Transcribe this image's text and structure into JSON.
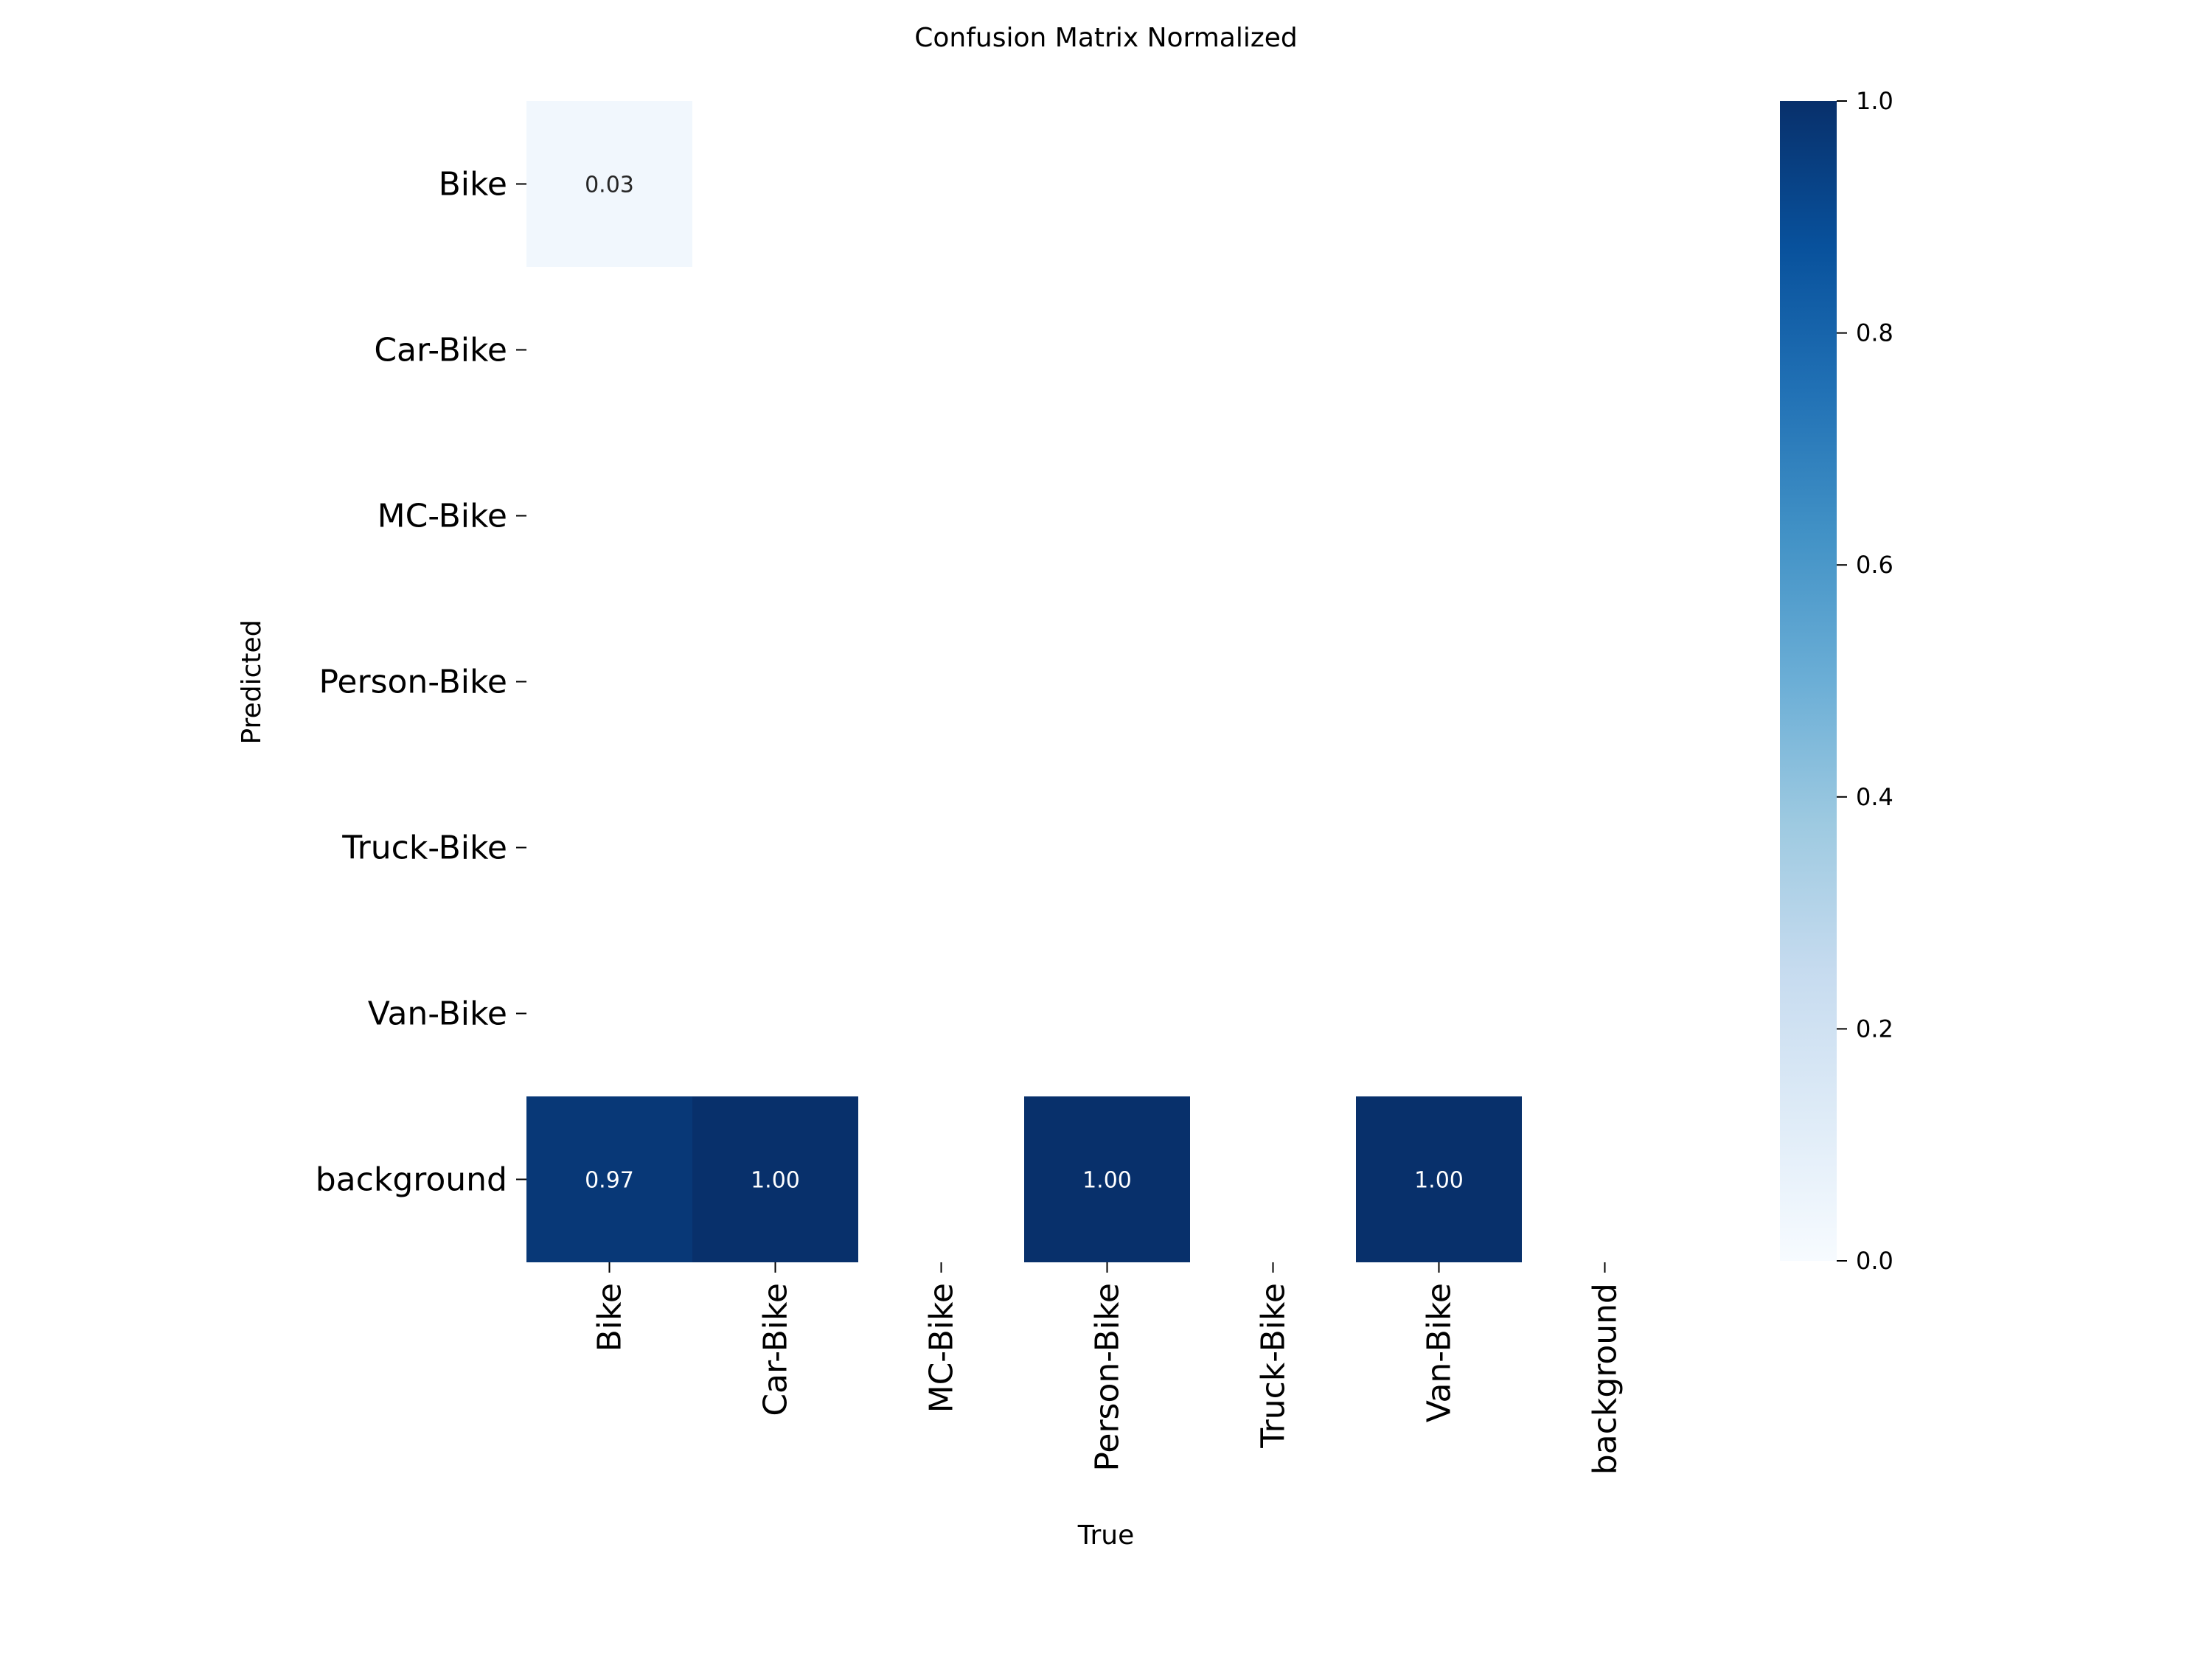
{
  "chart_data": {
    "type": "heatmap",
    "title": "Confusion Matrix Normalized",
    "xlabel": "True",
    "ylabel": "Predicted",
    "x_categories": [
      "Bike",
      "Car-Bike",
      "MC-Bike",
      "Person-Bike",
      "Truck-Bike",
      "Van-Bike",
      "background"
    ],
    "y_categories": [
      "Bike",
      "Car-Bike",
      "MC-Bike",
      "Person-Bike",
      "Truck-Bike",
      "Van-Bike",
      "background"
    ],
    "cells": [
      {
        "row": 0,
        "col": 0,
        "value": 0.03,
        "label": "0.03"
      },
      {
        "row": 6,
        "col": 0,
        "value": 0.97,
        "label": "0.97"
      },
      {
        "row": 6,
        "col": 1,
        "value": 1.0,
        "label": "1.00"
      },
      {
        "row": 6,
        "col": 3,
        "value": 1.0,
        "label": "1.00"
      },
      {
        "row": 6,
        "col": 5,
        "value": 1.0,
        "label": "1.00"
      }
    ],
    "colorbar": {
      "range": [
        0.0,
        1.0
      ],
      "ticks": [
        0.0,
        0.2,
        0.4,
        0.6,
        0.8,
        1.0
      ],
      "tick_labels": [
        "0.0",
        "0.2",
        "0.4",
        "0.6",
        "0.8",
        "1.0"
      ],
      "colormap": "Blues"
    },
    "colors": {
      "low": "#f7fbff",
      "high": "#08306b"
    }
  }
}
